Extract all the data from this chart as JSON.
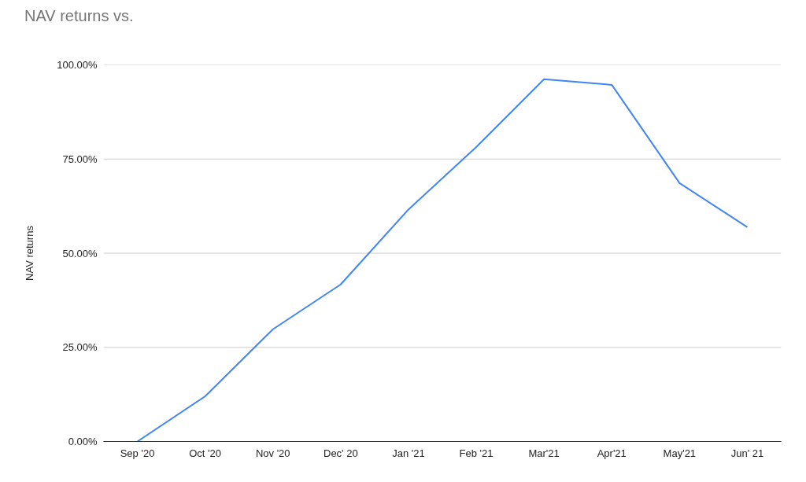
{
  "chart_data": {
    "type": "line",
    "title": "NAV returns vs.",
    "ylabel": "NAV returns",
    "categories": [
      "Sep '20",
      "Oct '20",
      "Nov '20",
      "Dec' 20",
      "Jan '21",
      "Feb '21",
      "Mar'21",
      "Apr'21",
      "May'21",
      "Jun' 21"
    ],
    "series": [
      {
        "color": "#4285f4",
        "values": [
          0,
          12.0,
          29.8,
          41.7,
          61.6,
          78.2,
          96.2,
          94.7,
          68.6,
          56.9
        ]
      }
    ],
    "ylim": [
      0,
      100
    ],
    "yticks": [
      {
        "value": 0,
        "label": "0.00%"
      },
      {
        "value": 25,
        "label": "25.00%"
      },
      {
        "value": 50,
        "label": "50.00%"
      },
      {
        "value": 75,
        "label": "75.00%"
      },
      {
        "value": 100,
        "label": "100.00%"
      }
    ],
    "grid": "y"
  }
}
